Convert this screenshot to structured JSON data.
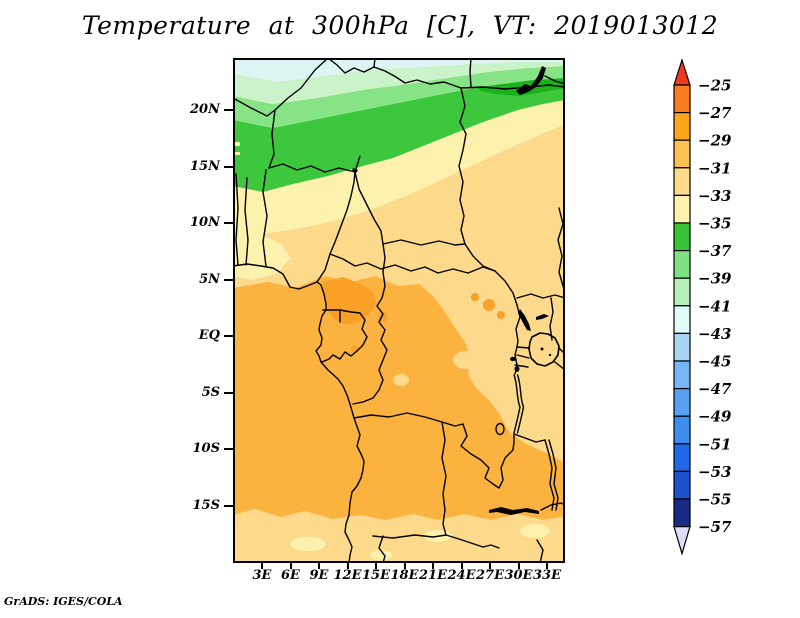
{
  "title": "Temperature at 300hPa [C], VT: 2019013012",
  "footer": "GrADS: IGES/COLA",
  "map": {
    "lat_labels": [
      "20N",
      "15N",
      "10N",
      "5N",
      "EQ",
      "5S",
      "10S",
      "15S"
    ],
    "lon_labels": [
      "3E",
      "6E",
      "9E",
      "12E",
      "15E",
      "18E",
      "21E",
      "24E",
      "27E",
      "30E",
      "33E"
    ]
  },
  "colorbar": {
    "labels": [
      "−25",
      "−27",
      "−29",
      "−31",
      "−33",
      "−35",
      "−37",
      "−39",
      "−41",
      "−43",
      "−45",
      "−47",
      "−49",
      "−51",
      "−53",
      "−55",
      "−57"
    ],
    "top_arrow_color": "#ee3a20",
    "bottom_arrow_color": "#dedef8",
    "box_colors": [
      "#f97b1d",
      "#fba41c",
      "#fcbf51",
      "#fcd98b",
      "#fdf2ad",
      "#38c438",
      "#7fe07f",
      "#b7f0b7",
      "#e1fafa",
      "#a9d3f2",
      "#77b6f3",
      "#56a2f1",
      "#3e8df0",
      "#2168e9",
      "#1c50cc",
      "#1a2b85"
    ]
  },
  "field_palette": {
    "cyan": "#ddf5f3",
    "palegreen": "#cbf3ca",
    "ltgreen": "#86e386",
    "green": "#3cc73c",
    "dkgreen": "#1bb11b",
    "paleyellow": "#fdf2ad",
    "tan": "#fcd98b",
    "orange": "#fbb23f",
    "dkorange": "#f9a026",
    "border": "#000000"
  },
  "chart_data": {
    "type": "heatmap",
    "title": "Temperature at 300hPa [C], VT: 2019013012",
    "variable": "Temperature at 300hPa",
    "units": "C",
    "valid_time": "2019013012",
    "x_ticks": [
      "3E",
      "6E",
      "9E",
      "12E",
      "15E",
      "18E",
      "21E",
      "24E",
      "27E",
      "30E",
      "33E"
    ],
    "y_ticks": [
      "20N",
      "15N",
      "10N",
      "5N",
      "EQ",
      "5S",
      "10S",
      "15S"
    ],
    "lon_range_deg_e": [
      0,
      35
    ],
    "lat_range_deg": [
      -20,
      24.6
    ],
    "legend_levels_c": [
      -25,
      -27,
      -29,
      -31,
      -33,
      -35,
      -37,
      -39,
      -41,
      -43,
      -45,
      -47,
      -49,
      -51,
      -53,
      -55,
      -57
    ],
    "legend_position": "right",
    "field_summary": [
      {
        "region": "northern edge 22N-24.6N",
        "value_c": "-39 to -43 (pale cyan / pale green)"
      },
      {
        "region": "20N-22N band",
        "value_c": "-37 to -39"
      },
      {
        "region": "13N-20N band (Sahel, deepest green)",
        "value_c": "-35 to -37"
      },
      {
        "region": "11N-13N band",
        "value_c": "-33 to -35"
      },
      {
        "region": "7N-11N band and NE quadrant (Sudan/Ethiopia side)",
        "value_c": "-31 to -33"
      },
      {
        "region": "bulk of central/southern Africa 6N-14S",
        "value_c": "-29 to -31"
      },
      {
        "region": "pockets near Cameroon/Gabon coast and central DRC",
        "value_c": "-27 to -29"
      },
      {
        "region": "south of ~15S and Lake Victoria highlands",
        "value_c": "-31 to -35"
      }
    ],
    "grid": false
  }
}
